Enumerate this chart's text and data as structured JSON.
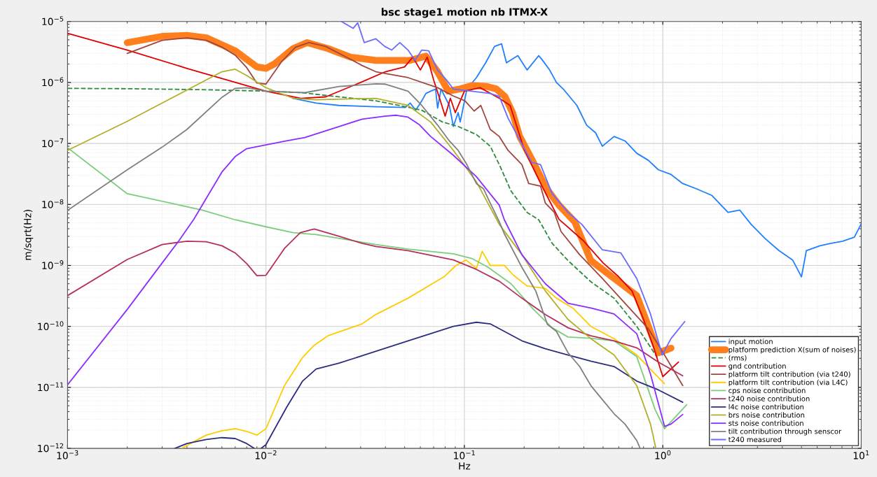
{
  "chart_data": {
    "type": "line",
    "title": "bsc stage1 motion nb ITMX-X",
    "xlabel": "Hz",
    "ylabel": "m/sqrt(Hz)",
    "log": "xy",
    "grid": true,
    "legend": "bottom right",
    "xlim": [
      0.001,
      10
    ],
    "ylim": [
      1e-12,
      1e-05
    ],
    "xticks": [
      {
        "value": 0.001,
        "label": "10$^{−3}$"
      },
      {
        "value": 0.01,
        "label": "10$^{−2}$"
      },
      {
        "value": 0.1,
        "label": "10$^{−1}$"
      },
      {
        "value": 1,
        "label": "10$^{0}$"
      },
      {
        "value": 10,
        "label": "10$^{1}$"
      }
    ],
    "yticks": [
      {
        "value": 1e-12,
        "label": "10$^{−12}$"
      },
      {
        "value": 1e-11,
        "label": "10$^{−11}$"
      },
      {
        "value": 1e-10,
        "label": "10$^{−10}$"
      },
      {
        "value": 1e-09,
        "label": "10$^{−9}$"
      },
      {
        "value": 1e-08,
        "label": "10$^{−8}$"
      },
      {
        "value": 1e-07,
        "label": "10$^{−7}$"
      },
      {
        "value": 1e-06,
        "label": "10$^{−6}$"
      },
      {
        "value": 1e-05,
        "label": "10$^{−5}$"
      }
    ],
    "series": [
      {
        "name": "input motion",
        "color": "#1f80ff",
        "x": [
          0.0137,
          0.0179,
          0.0234,
          0.0358,
          0.0504,
          0.0533,
          0.0568,
          0.061,
          0.064,
          0.0676,
          0.0716,
          0.0733,
          0.0763,
          0.084,
          0.088,
          0.093,
          0.0953,
          0.103,
          0.115,
          0.128,
          0.142,
          0.154,
          0.163,
          0.186,
          0.207,
          0.237,
          0.248,
          0.269,
          0.291,
          0.315,
          0.369,
          0.413,
          0.458,
          0.496,
          0.568,
          0.645,
          0.739,
          0.845,
          0.95,
          1.1,
          1.26,
          1.48,
          1.77,
          2.13,
          2.44,
          2.79,
          3.28,
          3.85,
          4.51,
          5.0,
          5.29,
          6.2,
          7.05,
          8.07,
          9.23,
          10
        ],
        "values": [
          5.5e-07,
          4.6e-07,
          4.2e-07,
          4e-07,
          3.9e-07,
          4.6e-07,
          3.5e-07,
          5e-07,
          6.6e-07,
          7.2e-07,
          7.8e-07,
          3.8e-07,
          7.8e-07,
          4.2e-07,
          1.9e-07,
          3.2e-07,
          2.25e-07,
          7.8e-07,
          1.2e-06,
          2.1e-06,
          3.9e-06,
          4.3e-06,
          2.1e-06,
          2.75e-06,
          1.6e-06,
          2.75e-06,
          2.3e-06,
          1.6e-06,
          1e-06,
          7.8e-07,
          4.2e-07,
          2e-07,
          1.5e-07,
          9e-08,
          1.3e-07,
          1.1e-07,
          6.9e-08,
          5.3e-08,
          3.7e-08,
          3.1e-08,
          2.2e-08,
          1.8e-08,
          1.4e-08,
          7.4e-09,
          8.1e-09,
          4.7e-09,
          2.75e-09,
          1.75e-09,
          1.23e-09,
          6.5e-10,
          1.75e-09,
          2.1e-09,
          2.3e-09,
          2.5e-09,
          2.9e-09,
          4.8e-09
        ]
      },
      {
        "name": "platform prediction X(sum of noises)",
        "color": "#ff7f1e",
        "x": [
          0.002,
          0.003,
          0.004,
          0.005,
          0.007,
          0.009,
          0.01,
          0.011,
          0.0137,
          0.0161,
          0.0205,
          0.0267,
          0.0358,
          0.053,
          0.064,
          0.0733,
          0.083,
          0.095,
          0.11,
          0.13,
          0.145,
          0.16,
          0.175,
          0.19,
          0.22,
          0.26,
          0.3,
          0.36,
          0.434,
          0.739,
          0.95,
          1.1
        ],
        "values": [
          4.5e-06,
          5.7e-06,
          5.9e-06,
          5.4e-06,
          3.3e-06,
          1.8e-06,
          1.7e-06,
          2e-06,
          3.6e-06,
          4.5e-06,
          3.6e-06,
          2.6e-06,
          2.3e-06,
          2.3e-06,
          2.7e-06,
          1.5e-06,
          7.2e-07,
          7.8e-07,
          8.9e-07,
          8.6e-07,
          7.8e-07,
          5.9e-07,
          3.2e-07,
          1.3e-07,
          5.3e-08,
          1.8e-08,
          9.7e-09,
          5.2e-09,
          1.2e-09,
          3.2e-10,
          3.7e-11,
          4.4e-11
        ]
      },
      {
        "name": "(rms)",
        "color": "#2e8b3d",
        "line_style": "dashed",
        "x": [
          0.001,
          0.002,
          0.005,
          0.01,
          0.015,
          0.0358,
          0.0504,
          0.061,
          0.0775,
          0.093,
          0.115,
          0.135,
          0.15,
          0.172,
          0.207,
          0.237,
          0.277,
          0.333,
          0.434,
          0.568,
          0.739,
          0.938
        ],
        "values": [
          8e-07,
          7.9e-07,
          7.6e-07,
          7.2e-07,
          6.8e-07,
          5e-07,
          4e-07,
          3.5e-07,
          2.25e-07,
          1.9e-07,
          1.4e-07,
          9e-08,
          4.5e-08,
          1.65e-08,
          7.4e-09,
          5.6e-09,
          2.3e-09,
          1.2e-09,
          5.4e-10,
          2.9e-10,
          1e-10,
          3.1e-11
        ]
      },
      {
        "name": "gnd contribution",
        "color": "#e00000",
        "x": [
          0.001,
          0.002,
          0.004,
          0.01,
          0.015,
          0.02,
          0.03,
          0.04,
          0.05,
          0.055,
          0.06,
          0.065,
          0.07,
          0.075,
          0.08,
          0.085,
          0.09,
          0.1,
          0.12,
          0.15,
          0.17,
          0.2,
          0.25,
          0.3,
          0.4,
          0.5,
          0.6,
          0.7,
          0.8,
          0.9,
          1.0,
          1.2
        ],
        "values": [
          6.4e-06,
          3.4e-06,
          1.7e-06,
          7.2e-07,
          5.5e-07,
          5.8e-07,
          1e-06,
          1.5e-06,
          1.8e-06,
          2.6e-06,
          1.6e-06,
          2.6e-06,
          1.1e-06,
          5.5e-07,
          2.8e-07,
          5.5e-07,
          3.2e-07,
          7.2e-07,
          8.2e-07,
          5.5e-07,
          4.2e-07,
          8e-08,
          1.8e-08,
          5.7e-09,
          2.5e-09,
          1.1e-09,
          6.5e-10,
          3.8e-10,
          1.3e-10,
          4.5e-11,
          1.5e-11,
          2.6e-11
        ]
      },
      {
        "name": "platform tilt contribution (via t240)",
        "color": "#a0463f",
        "x": [
          0.002,
          0.003,
          0.004,
          0.005,
          0.006,
          0.007,
          0.008,
          0.009,
          0.01,
          0.012,
          0.0141,
          0.0165,
          0.02,
          0.0267,
          0.0305,
          0.0358,
          0.052,
          0.0733,
          0.088,
          0.1007,
          0.112,
          0.121,
          0.135,
          0.15,
          0.166,
          0.195,
          0.211,
          0.242,
          0.256,
          0.284,
          0.307,
          0.381,
          0.496,
          0.645,
          0.845,
          1.02,
          1.26
        ],
        "values": [
          3e-06,
          4.9e-06,
          5.4e-06,
          4.9e-06,
          3.8e-06,
          2.8e-06,
          1.75e-06,
          9.8e-07,
          9.4e-07,
          2.2e-06,
          3.8e-06,
          4.5e-06,
          3.9e-06,
          2.4e-06,
          1.9e-06,
          1.5e-06,
          1.2e-06,
          8.2e-07,
          6e-07,
          5e-07,
          3.4e-07,
          4.2e-07,
          1.7e-07,
          1.3e-07,
          7.7e-08,
          4.5e-08,
          2.2e-08,
          2e-08,
          1.05e-08,
          7.4e-09,
          3.6e-09,
          1.5e-09,
          6.1e-10,
          2.4e-10,
          9.2e-11,
          3.4e-11,
          1.07e-11
        ]
      },
      {
        "name": "platform tilt contribution (via L4C)",
        "color": "#ffcc00",
        "x": [
          0.00375,
          0.005,
          0.006,
          0.007,
          0.008,
          0.009,
          0.01,
          0.0124,
          0.0153,
          0.0175,
          0.0205,
          0.0305,
          0.0358,
          0.052,
          0.0794,
          0.0908,
          0.102,
          0.115,
          0.123,
          0.135,
          0.159,
          0.176,
          0.207,
          0.256,
          0.291,
          0.352,
          0.434,
          0.568,
          0.739,
          1.02
        ],
        "values": [
          1e-12,
          1.65e-12,
          1.95e-12,
          2.1e-12,
          1.9e-12,
          1.65e-12,
          2.1e-12,
          1.07e-11,
          3.1e-11,
          4.9e-11,
          7e-11,
          1.1e-10,
          1.57e-10,
          2.9e-10,
          6.6e-10,
          1e-09,
          1.23e-09,
          9e-10,
          1.7e-09,
          1e-09,
          1e-09,
          7e-10,
          4.6e-10,
          4.2e-10,
          2.9e-10,
          2e-10,
          1e-10,
          6.3e-11,
          3.4e-11,
          1.15e-11
        ]
      },
      {
        "name": "cps noise contribution",
        "color": "#7ccd7c",
        "x": [
          0.001,
          0.002,
          0.00477,
          0.007,
          0.01,
          0.0137,
          0.0179,
          0.0305,
          0.0358,
          0.052,
          0.088,
          0.109,
          0.131,
          0.172,
          0.223,
          0.277,
          0.333,
          0.434,
          0.568,
          0.739,
          0.916,
          1.02,
          1.13,
          1.32
        ],
        "values": [
          8.5e-08,
          1.5e-08,
          8.1e-09,
          5.6e-09,
          4.3e-09,
          3.45e-09,
          3.2e-09,
          2.4e-09,
          2.2e-09,
          1.85e-09,
          1.55e-09,
          1.3e-09,
          9.4e-10,
          5e-10,
          1.9e-10,
          9.5e-11,
          6.7e-11,
          6.4e-11,
          5.8e-11,
          3.2e-11,
          4.3e-12,
          2.1e-12,
          3e-12,
          5.2e-12
        ]
      },
      {
        "name": "t240 noise contribution",
        "color": "#b5305c",
        "x": [
          0.001,
          0.002,
          0.003,
          0.004,
          0.005,
          0.006,
          0.007,
          0.008,
          0.009,
          0.01,
          0.0124,
          0.0149,
          0.0175,
          0.0234,
          0.0305,
          0.0358,
          0.052,
          0.088,
          0.115,
          0.15,
          0.195,
          0.256,
          0.333,
          0.434,
          0.568,
          0.739,
          0.95,
          1.26
        ],
        "values": [
          3.2e-10,
          1.25e-09,
          2.2e-09,
          2.5e-09,
          2.45e-09,
          2.1e-09,
          1.6e-09,
          1.07e-09,
          6.8e-10,
          6.9e-10,
          1.9e-09,
          3.45e-09,
          3.95e-09,
          3e-09,
          2.3e-09,
          2.05e-09,
          1.75e-09,
          1.23e-09,
          8.6e-10,
          5.5e-10,
          2.9e-10,
          1.56e-10,
          9.5e-11,
          7e-11,
          5.8e-11,
          4.45e-11,
          2.6e-11,
          1.55e-11
        ]
      },
      {
        "name": "l4c noise contribution",
        "color": "#2d2d80",
        "x": [
          0.00347,
          0.004,
          0.005,
          0.006,
          0.007,
          0.008,
          0.00873,
          0.0092,
          0.00946,
          0.01,
          0.0127,
          0.0153,
          0.0179,
          0.0234,
          0.0305,
          0.052,
          0.088,
          0.115,
          0.135,
          0.195,
          0.256,
          0.333,
          0.434,
          0.568,
          0.739,
          0.95,
          1.26
        ],
        "values": [
          1e-12,
          1.2e-12,
          1.4e-12,
          1.5e-12,
          1.45e-12,
          1.2e-12,
          1e-12,
          null,
          1e-12,
          1.15e-12,
          4.7e-12,
          1.27e-11,
          2e-11,
          2.5e-11,
          3.3e-11,
          5.8e-11,
          1e-10,
          1.17e-10,
          1.1e-10,
          5.8e-11,
          4.3e-11,
          3.4e-11,
          2.7e-11,
          2.2e-11,
          1.27e-11,
          9.1e-12,
          5.7e-12
        ]
      },
      {
        "name": "brs noise contribution",
        "color": "#b0b02a",
        "x": [
          0.001,
          0.002,
          0.003,
          0.004,
          0.006,
          0.007,
          0.008,
          0.01,
          0.0137,
          0.0179,
          0.0358,
          0.052,
          0.0676,
          0.088,
          0.115,
          0.15,
          0.195,
          0.256,
          0.333,
          0.434,
          0.568,
          0.739,
          0.867,
          0.923
        ],
        "values": [
          7.7e-08,
          2.3e-07,
          4.6e-07,
          7.5e-07,
          1.5e-06,
          1.65e-06,
          1.3e-06,
          8.2e-07,
          5.5e-07,
          5.2e-07,
          5.5e-07,
          4.2e-07,
          2.25e-07,
          7.7e-08,
          2.35e-08,
          4.7e-09,
          1.5e-09,
          3.8e-10,
          1.3e-10,
          6.3e-11,
          3.4e-11,
          1.07e-11,
          2.5e-12,
          1e-12
        ]
      },
      {
        "name": "sts noise contribution",
        "color": "#8c2cff",
        "x": [
          0.001,
          0.002,
          0.003,
          0.00363,
          0.00433,
          0.006,
          0.007,
          0.008,
          0.01,
          0.0127,
          0.0157,
          0.0234,
          0.0305,
          0.0397,
          0.0454,
          0.052,
          0.0591,
          0.0676,
          0.088,
          0.115,
          0.15,
          0.159,
          0.195,
          0.256,
          0.333,
          0.434,
          0.568,
          0.739,
          0.867,
          1.02,
          1.1,
          1.26
        ],
        "values": [
          1.1e-11,
          1.9e-10,
          1.1e-09,
          2.5e-09,
          5.7e-09,
          3.4e-08,
          6.1e-08,
          8.2e-08,
          9.5e-08,
          1.1e-07,
          1.25e-07,
          1.9e-07,
          2.5e-07,
          2.8e-07,
          2.9e-07,
          2.7e-07,
          2.05e-07,
          1.3e-07,
          6.4e-08,
          2.85e-08,
          9.7e-09,
          5.6e-09,
          1.5e-09,
          5e-10,
          2.4e-10,
          2e-10,
          1.6e-10,
          7.6e-11,
          1.65e-11,
          2.3e-12,
          2.5e-12,
          3.6e-12
        ]
      },
      {
        "name": "tilt contribution through senscor",
        "color": "#808080",
        "x": [
          0.001,
          0.002,
          0.003,
          0.004,
          0.006,
          0.007,
          0.008,
          0.01,
          0.0157,
          0.0234,
          0.0358,
          0.0397,
          0.052,
          0.061,
          0.0733,
          0.084,
          0.093,
          0.103,
          0.115,
          0.125,
          0.135,
          0.15,
          0.159,
          0.195,
          0.229,
          0.262,
          0.291,
          0.333,
          0.381,
          0.434,
          0.496,
          0.568,
          0.645,
          0.739,
          0.769
        ],
        "values": [
          8e-09,
          3.7e-08,
          8.7e-08,
          1.7e-07,
          5.7e-07,
          8e-07,
          8.2e-07,
          7.2e-07,
          6.8e-07,
          8.6e-07,
          9.5e-07,
          9.4e-07,
          7.2e-07,
          4.2e-07,
          2e-07,
          1.1e-07,
          7.7e-08,
          4.5e-08,
          2.2e-08,
          1.8e-08,
          1.05e-08,
          5.2e-09,
          3.3e-09,
          9.3e-10,
          3.8e-10,
          1.08e-10,
          8.3e-11,
          3.7e-11,
          2.2e-11,
          1.07e-11,
          6.3e-12,
          3.7e-12,
          2.5e-12,
          1.35e-12,
          1e-12
        ]
      },
      {
        "name": "t240 measured",
        "color": "#6b6bff",
        "x": [
          0.024,
          0.0275,
          0.029,
          0.0313,
          0.0358,
          0.0397,
          0.043,
          0.0473,
          0.052,
          0.0564,
          0.061,
          0.0661,
          0.0733,
          0.0813,
          0.088,
          0.109,
          0.135,
          0.15,
          0.166,
          0.186,
          0.218,
          0.242,
          0.277,
          0.333,
          0.391,
          0.496,
          0.615,
          0.739,
          0.867,
          0.993,
          1.1,
          1.29
        ],
        "values": [
          1e-05,
          7.7e-06,
          9.5e-06,
          4.5e-06,
          5.2e-06,
          3.9e-06,
          3.4e-06,
          4.5e-06,
          3.4e-06,
          2.3e-06,
          3.4e-06,
          3.3e-06,
          1.6e-06,
          1.1e-06,
          7.8e-07,
          7.2e-07,
          6.6e-07,
          5.9e-07,
          2.6e-07,
          1.3e-07,
          4.9e-08,
          4.5e-08,
          1.5e-08,
          7.4e-09,
          4.7e-09,
          1.8e-09,
          1.6e-09,
          6.1e-10,
          1.6e-10,
          3.4e-11,
          6.3e-11,
          1.2e-10
        ]
      }
    ]
  }
}
